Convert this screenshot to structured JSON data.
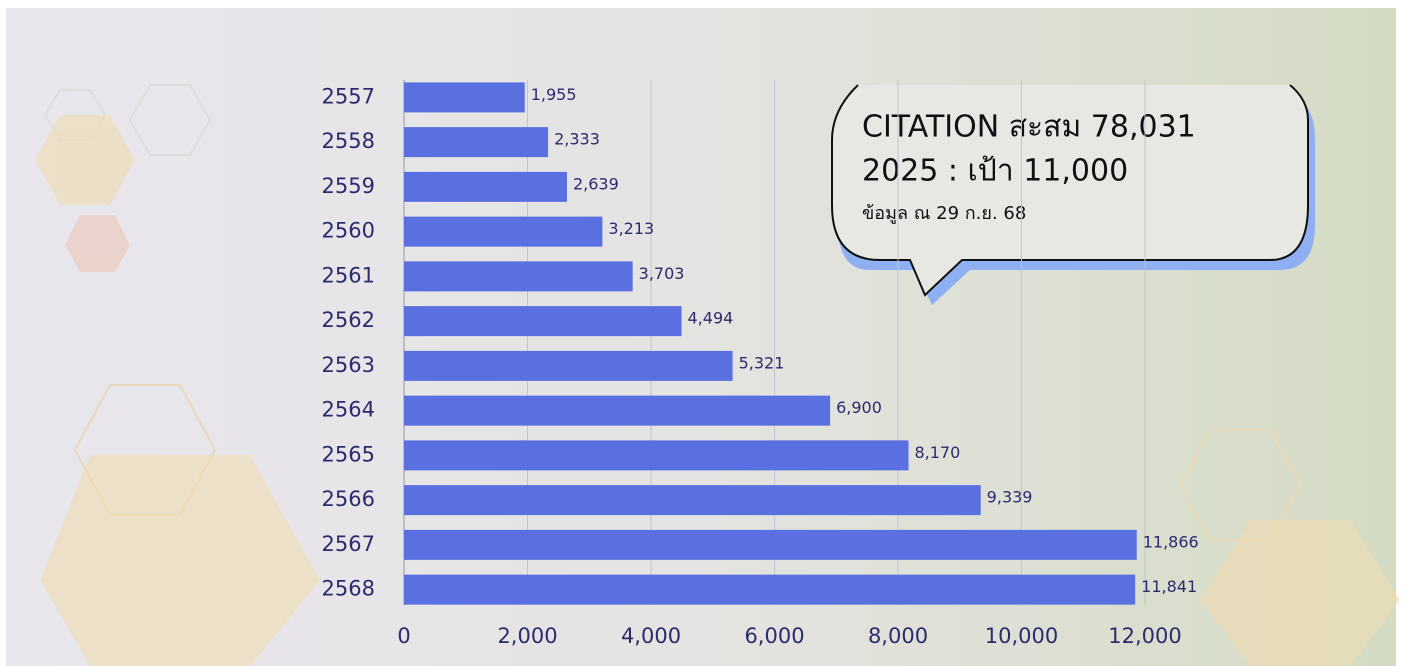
{
  "chart_data": {
    "type": "bar",
    "orientation": "horizontal",
    "categories": [
      "2557",
      "2558",
      "2559",
      "2560",
      "2561",
      "2562",
      "2563",
      "2564",
      "2565",
      "2566",
      "2567",
      "2568"
    ],
    "values": [
      1955,
      2333,
      2639,
      3213,
      3703,
      4494,
      5321,
      6900,
      8170,
      9339,
      11866,
      11841
    ],
    "value_labels": [
      "1,955",
      "2,333",
      "2,639",
      "3,213",
      "3,703",
      "4,494",
      "5,321",
      "6,900",
      "8,170",
      "9,339",
      "11,866",
      "11,841"
    ],
    "color": "#5a6fe0",
    "xlim": [
      0,
      12000
    ],
    "xticks": [
      0,
      {
        "value": 2000,
        "label": "2,000"
      },
      {
        "value": 4000,
        "label": "4,000"
      },
      {
        "value": 6000,
        "label": "6,000"
      },
      {
        "value": 8000,
        "label": "8,000"
      },
      {
        "value": 10000,
        "label": "10,000"
      },
      {
        "value": 12000,
        "label": "12,000"
      }
    ],
    "grid": true,
    "annotations": [
      "CITATION สะสม 78,031",
      "2025 : เป้า 11,000",
      "ข้อมูล ณ 29 ก.ย. 68"
    ]
  }
}
